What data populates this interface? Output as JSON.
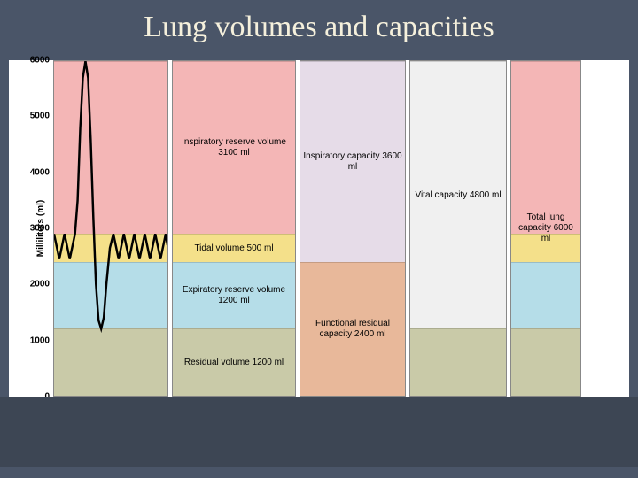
{
  "title": "Lung volumes and capacities",
  "y_axis": {
    "label": "Milliliters (ml)",
    "min": 0,
    "max": 6000,
    "ticks": [
      0,
      1000,
      2000,
      3000,
      4000,
      5000,
      6000
    ],
    "label_fontsize": 10,
    "tick_fontsize": 10
  },
  "colors": {
    "slide_bg": "#4a5568",
    "title_color": "#f5f0dc",
    "chart_bg": "#ffffff",
    "pink": "#f4b6b6",
    "yellow": "#f4e08a",
    "blue": "#b5dde8",
    "olive": "#c9caa8",
    "lilac": "#e6dce8",
    "salmon": "#e8b89a",
    "gray_light": "#f0f0f0",
    "border": "#888888",
    "line": "#000000"
  },
  "volumes": [
    {
      "name": "Inspiratory reserve volume",
      "value_ml": 3100,
      "from": 2900,
      "to": 6000,
      "color": "#f4b6b6",
      "label": "Inspiratory reserve volume 3100 ml"
    },
    {
      "name": "Tidal volume",
      "value_ml": 500,
      "from": 2400,
      "to": 2900,
      "color": "#f4e08a",
      "label": "Tidal volume 500 ml"
    },
    {
      "name": "Expiratory reserve volume",
      "value_ml": 1200,
      "from": 1200,
      "to": 2400,
      "color": "#b5dde8",
      "label": "Expiratory reserve volume 1200 ml"
    },
    {
      "name": "Residual volume",
      "value_ml": 1200,
      "from": 0,
      "to": 1200,
      "color": "#c9caa8",
      "label": "Residual volume 1200 ml"
    }
  ],
  "capacities_col1": [
    {
      "name": "Inspiratory capacity",
      "value_ml": 3600,
      "from": 2400,
      "to": 6000,
      "color": "#e6dce8",
      "label": "Inspiratory capacity 3600 ml"
    },
    {
      "name": "Functional residual capacity",
      "value_ml": 2400,
      "from": 0,
      "to": 2400,
      "color": "#e8b89a",
      "label": "Functional residual capacity 2400 ml"
    }
  ],
  "capacities_col2": [
    {
      "name": "Vital capacity",
      "value_ml": 4800,
      "from": 1200,
      "to": 6000,
      "color": "#f0f0f0",
      "label": "Vital capacity 4800 ml"
    },
    {
      "name": "rv-shadow",
      "value_ml": 1200,
      "from": 0,
      "to": 1200,
      "color": "#c9caa8",
      "label": ""
    }
  ],
  "capacities_col3": [
    {
      "name": "Total lung capacity",
      "value_ml": 6000,
      "from": 0,
      "to": 6000,
      "segments": [
        {
          "from": 2900,
          "to": 6000,
          "color": "#f4b6b6"
        },
        {
          "from": 2400,
          "to": 2900,
          "color": "#f4e08a"
        },
        {
          "from": 1200,
          "to": 2400,
          "color": "#b5dde8"
        },
        {
          "from": 0,
          "to": 1200,
          "color": "#c9caa8"
        }
      ],
      "label": "Total lung capacity 6000 ml"
    }
  ],
  "spirogram": {
    "line_color": "#000000",
    "line_width": 2.5,
    "baseline_tidal_low": 2400,
    "baseline_tidal_high": 2900,
    "deep_inhale_peak": 6000,
    "deep_exhale_trough": 1200,
    "points": [
      [
        0,
        2900
      ],
      [
        6,
        2450
      ],
      [
        12,
        2900
      ],
      [
        18,
        2450
      ],
      [
        24,
        2900
      ],
      [
        27,
        3500
      ],
      [
        30,
        4800
      ],
      [
        33,
        5700
      ],
      [
        36,
        6000
      ],
      [
        39,
        5700
      ],
      [
        42,
        4600
      ],
      [
        45,
        3200
      ],
      [
        48,
        2000
      ],
      [
        51,
        1350
      ],
      [
        54,
        1200
      ],
      [
        57,
        1400
      ],
      [
        60,
        2000
      ],
      [
        64,
        2650
      ],
      [
        68,
        2900
      ],
      [
        74,
        2450
      ],
      [
        80,
        2900
      ],
      [
        86,
        2450
      ],
      [
        92,
        2900
      ],
      [
        98,
        2450
      ],
      [
        104,
        2900
      ],
      [
        110,
        2450
      ],
      [
        116,
        2900
      ],
      [
        122,
        2450
      ],
      [
        128,
        2900
      ],
      [
        130,
        2700
      ]
    ]
  }
}
